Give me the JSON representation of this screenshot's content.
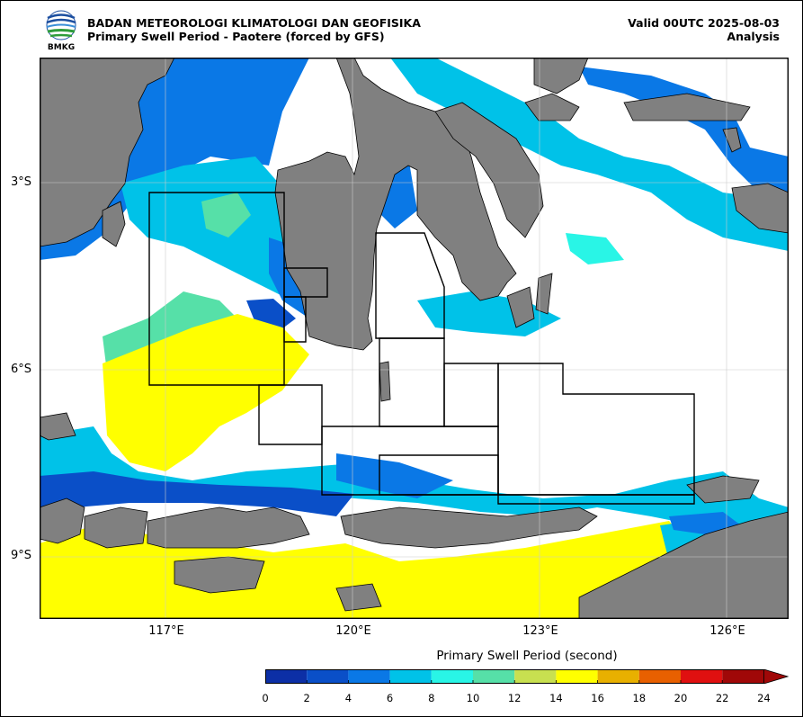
{
  "header": {
    "agency": "BADAN METEOROLOGI KLIMATOLOGI DAN GEOFISIKA",
    "subtitle": "Primary Swell Period - Paotere (forced by GFS)",
    "valid": "Valid 00UTC 2025-08-03",
    "analysis": "Analysis",
    "logo_text": "BMKG"
  },
  "map": {
    "lat_labels": [
      {
        "text": "3°S",
        "lat": -3
      },
      {
        "text": "6°S",
        "lat": -6
      },
      {
        "text": "9°S",
        "lat": -9
      }
    ],
    "lon_labels": [
      {
        "text": "117°E",
        "lon": 117
      },
      {
        "text": "120°E",
        "lon": 120
      },
      {
        "text": "123°E",
        "lon": 123
      },
      {
        "text": "126°E",
        "lon": 126
      }
    ],
    "lon_range": [
      115.0,
      127.0
    ],
    "lat_range": [
      -10.0,
      -1.0
    ],
    "land_color": "#808080",
    "grid": true
  },
  "colorbar": {
    "title": "Primary Swell Period (second)",
    "ticks": [
      "0",
      "2",
      "4",
      "6",
      "8",
      "10",
      "12",
      "14",
      "16",
      "18",
      "20",
      "22",
      "24"
    ],
    "colors": [
      "#0c2fa6",
      "#0a4fc8",
      "#0a78e6",
      "#00c2e8",
      "#29f5e6",
      "#56e0a8",
      "#c8e050",
      "#ffff00",
      "#e8b000",
      "#e86000",
      "#e01010",
      "#a00808"
    ],
    "extend": "max"
  }
}
